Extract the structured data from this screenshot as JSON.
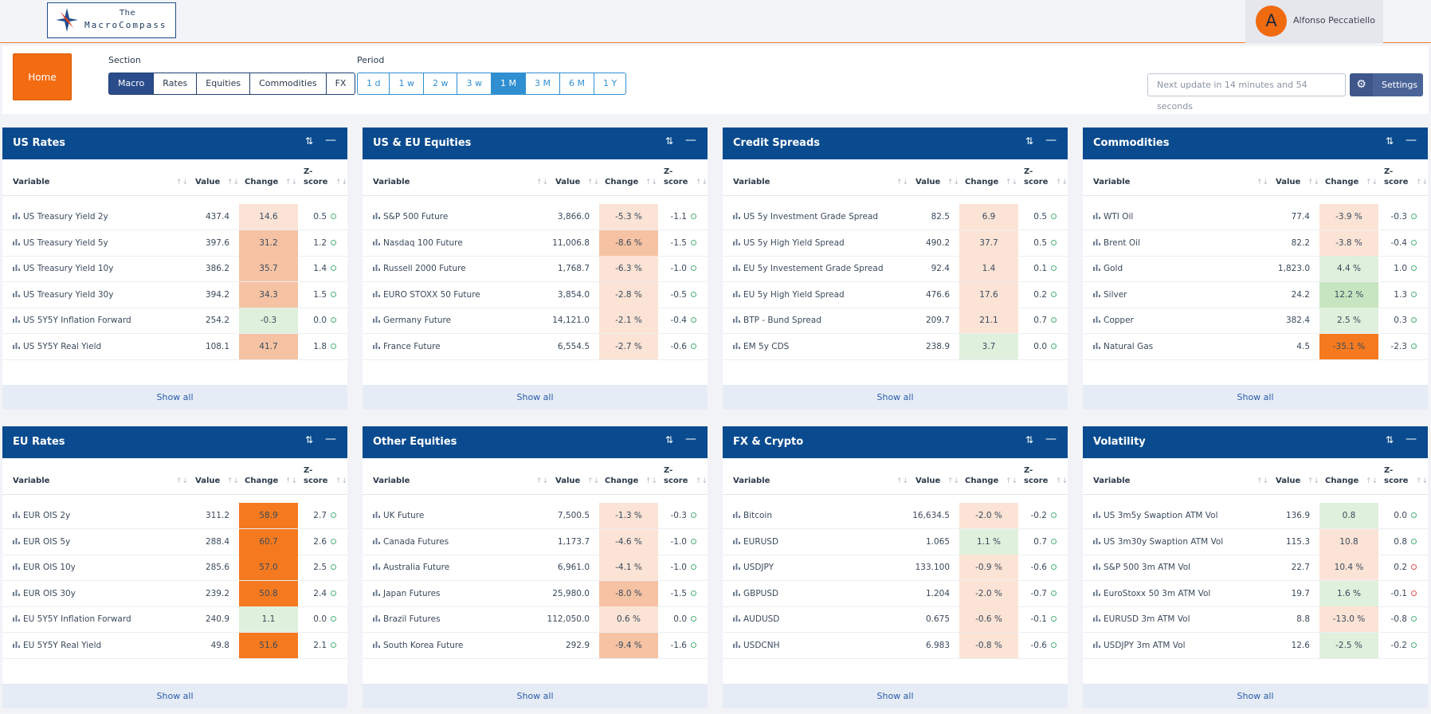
{
  "header": {
    "logo_line1": "The",
    "logo_line2": "MacroCompass",
    "user_initial": "A",
    "user_name": "Alfonso Peccatiello"
  },
  "controls": {
    "home_label": "Home",
    "section_label": "Section",
    "sections": [
      {
        "label": "Macro",
        "active": true
      },
      {
        "label": "Rates",
        "active": false
      },
      {
        "label": "Equities",
        "active": false
      },
      {
        "label": "Commodities",
        "active": false
      },
      {
        "label": "FX",
        "active": false
      }
    ],
    "period_label": "Period",
    "periods": [
      {
        "label": "1 d",
        "active": false
      },
      {
        "label": "1 w",
        "active": false
      },
      {
        "label": "2 w",
        "active": false
      },
      {
        "label": "3 w",
        "active": false
      },
      {
        "label": "1 M",
        "active": true
      },
      {
        "label": "3 M",
        "active": false
      },
      {
        "label": "6 M",
        "active": false
      },
      {
        "label": "1 Y",
        "active": false
      }
    ],
    "next_update": "Next update in 14 minutes and 54 seconds",
    "settings_label": "Settings"
  },
  "table_headers": {
    "variable": "Variable",
    "value": "Value",
    "change": "Change",
    "zscore_line1": "Z-",
    "zscore_line2": "score",
    "show_all": "Show all"
  },
  "colors": {
    "header_blue": "#0a4b8f",
    "accent_orange": "#f36c12",
    "strong_up": "#f57a1f",
    "up": "#f5c3a3",
    "light_up": "#fbe3d5",
    "down": "#dff0dc",
    "strong_down": "#c6e5c0"
  },
  "panels": [
    {
      "title": "US Rates",
      "rows": [
        {
          "name": "US Treasury Yield 2y",
          "value": "437.4",
          "change": "14.6",
          "z": "0.5",
          "level": "light_up",
          "zdir": "green"
        },
        {
          "name": "US Treasury Yield 5y",
          "value": "397.6",
          "change": "31.2",
          "z": "1.2",
          "level": "up",
          "zdir": "green"
        },
        {
          "name": "US Treasury Yield 10y",
          "value": "386.2",
          "change": "35.7",
          "z": "1.4",
          "level": "up",
          "zdir": "green"
        },
        {
          "name": "US Treasury Yield 30y",
          "value": "394.2",
          "change": "34.3",
          "z": "1.5",
          "level": "up",
          "zdir": "green"
        },
        {
          "name": "US 5Y5Y Inflation Forward",
          "value": "254.2",
          "change": "-0.3",
          "z": "0.0",
          "level": "down",
          "zdir": "green"
        },
        {
          "name": "US 5Y5Y Real Yield",
          "value": "108.1",
          "change": "41.7",
          "z": "1.8",
          "level": "up",
          "zdir": "green"
        }
      ]
    },
    {
      "title": "US & EU Equities",
      "rows": [
        {
          "name": "S&P 500 Future",
          "value": "3,866.0",
          "change": "-5.3 %",
          "z": "-1.1",
          "level": "light_up",
          "zdir": "green"
        },
        {
          "name": "Nasdaq 100 Future",
          "value": "11,006.8",
          "change": "-8.6 %",
          "z": "-1.5",
          "level": "up",
          "zdir": "green"
        },
        {
          "name": "Russell 2000 Future",
          "value": "1,768.7",
          "change": "-6.3 %",
          "z": "-1.0",
          "level": "light_up",
          "zdir": "green"
        },
        {
          "name": "EURO STOXX 50 Future",
          "value": "3,854.0",
          "change": "-2.8 %",
          "z": "-0.5",
          "level": "light_up",
          "zdir": "green"
        },
        {
          "name": "Germany Future",
          "value": "14,121.0",
          "change": "-2.1 %",
          "z": "-0.4",
          "level": "light_up",
          "zdir": "green"
        },
        {
          "name": "France Future",
          "value": "6,554.5",
          "change": "-2.7 %",
          "z": "-0.6",
          "level": "light_up",
          "zdir": "green"
        }
      ]
    },
    {
      "title": "Credit Spreads",
      "rows": [
        {
          "name": "US 5y Investment Grade Spread",
          "value": "82.5",
          "change": "6.9",
          "z": "0.5",
          "level": "light_up",
          "zdir": "green"
        },
        {
          "name": "US 5y High Yield Spread",
          "value": "490.2",
          "change": "37.7",
          "z": "0.5",
          "level": "light_up",
          "zdir": "green"
        },
        {
          "name": "EU 5y Investement Grade Spread",
          "value": "92.4",
          "change": "1.4",
          "z": "0.1",
          "level": "light_up",
          "zdir": "green"
        },
        {
          "name": "EU 5y High Yield Spread",
          "value": "476.6",
          "change": "17.6",
          "z": "0.2",
          "level": "light_up",
          "zdir": "green"
        },
        {
          "name": "BTP - Bund Spread",
          "value": "209.7",
          "change": "21.1",
          "z": "0.7",
          "level": "light_up",
          "zdir": "green"
        },
        {
          "name": "EM 5y CDS",
          "value": "238.9",
          "change": "3.7",
          "z": "0.0",
          "level": "down",
          "zdir": "green"
        }
      ]
    },
    {
      "title": "Commodities",
      "rows": [
        {
          "name": "WTI Oil",
          "value": "77.4",
          "change": "-3.9 %",
          "z": "-0.3",
          "level": "light_up",
          "zdir": "green"
        },
        {
          "name": "Brent Oil",
          "value": "82.2",
          "change": "-3.8 %",
          "z": "-0.4",
          "level": "light_up",
          "zdir": "green"
        },
        {
          "name": "Gold",
          "value": "1,823.0",
          "change": "4.4 %",
          "z": "1.0",
          "level": "down",
          "zdir": "green"
        },
        {
          "name": "Silver",
          "value": "24.2",
          "change": "12.2 %",
          "z": "1.3",
          "level": "strong_down",
          "zdir": "green"
        },
        {
          "name": "Copper",
          "value": "382.4",
          "change": "2.5 %",
          "z": "0.3",
          "level": "down",
          "zdir": "green"
        },
        {
          "name": "Natural Gas",
          "value": "4.5",
          "change": "-35.1 %",
          "z": "-2.3",
          "level": "strong_up",
          "zdir": "green"
        }
      ]
    },
    {
      "title": "EU Rates",
      "rows": [
        {
          "name": "EUR OIS 2y",
          "value": "311.2",
          "change": "58.9",
          "z": "2.7",
          "level": "strong_up",
          "zdir": "green"
        },
        {
          "name": "EUR OIS 5y",
          "value": "288.4",
          "change": "60.7",
          "z": "2.6",
          "level": "strong_up",
          "zdir": "green"
        },
        {
          "name": "EUR OIS 10y",
          "value": "285.6",
          "change": "57.0",
          "z": "2.5",
          "level": "strong_up",
          "zdir": "green"
        },
        {
          "name": "EUR OIS 30y",
          "value": "239.2",
          "change": "50.8",
          "z": "2.4",
          "level": "strong_up",
          "zdir": "green"
        },
        {
          "name": "EU 5Y5Y Inflation Forward",
          "value": "240.9",
          "change": "1.1",
          "z": "0.0",
          "level": "down",
          "zdir": "green"
        },
        {
          "name": "EU 5Y5Y Real Yield",
          "value": "49.8",
          "change": "51.6",
          "z": "2.1",
          "level": "strong_up",
          "zdir": "green"
        }
      ]
    },
    {
      "title": "Other Equities",
      "rows": [
        {
          "name": "UK Future",
          "value": "7,500.5",
          "change": "-1.3 %",
          "z": "-0.3",
          "level": "light_up",
          "zdir": "green"
        },
        {
          "name": "Canada Futures",
          "value": "1,173.7",
          "change": "-4.6 %",
          "z": "-1.0",
          "level": "light_up",
          "zdir": "green"
        },
        {
          "name": "Australia Future",
          "value": "6,961.0",
          "change": "-4.1 %",
          "z": "-1.0",
          "level": "light_up",
          "zdir": "green"
        },
        {
          "name": "Japan Futures",
          "value": "25,980.0",
          "change": "-8.0 %",
          "z": "-1.5",
          "level": "up",
          "zdir": "green"
        },
        {
          "name": "Brazil Futures",
          "value": "112,050.0",
          "change": "0.6 %",
          "z": "0.0",
          "level": "light_up",
          "zdir": "green"
        },
        {
          "name": "South Korea Future",
          "value": "292.9",
          "change": "-9.4 %",
          "z": "-1.6",
          "level": "up",
          "zdir": "green"
        }
      ]
    },
    {
      "title": "FX & Crypto",
      "rows": [
        {
          "name": "Bitcoin",
          "value": "16,634.5",
          "change": "-2.0 %",
          "z": "-0.2",
          "level": "light_up",
          "zdir": "green"
        },
        {
          "name": "EURUSD",
          "value": "1.065",
          "change": "1.1 %",
          "z": "0.7",
          "level": "down",
          "zdir": "green"
        },
        {
          "name": "USDJPY",
          "value": "133.100",
          "change": "-0.9 %",
          "z": "-0.6",
          "level": "light_up",
          "zdir": "green"
        },
        {
          "name": "GBPUSD",
          "value": "1.204",
          "change": "-2.0 %",
          "z": "-0.7",
          "level": "light_up",
          "zdir": "green"
        },
        {
          "name": "AUDUSD",
          "value": "0.675",
          "change": "-0.6 %",
          "z": "-0.1",
          "level": "light_up",
          "zdir": "green"
        },
        {
          "name": "USDCNH",
          "value": "6.983",
          "change": "-0.8 %",
          "z": "-0.6",
          "level": "light_up",
          "zdir": "green"
        }
      ]
    },
    {
      "title": "Volatility",
      "rows": [
        {
          "name": "US 3m5y Swaption ATM Vol",
          "value": "136.9",
          "change": "0.8",
          "z": "0.0",
          "level": "down",
          "zdir": "green"
        },
        {
          "name": "US 3m30y Swaption ATM Vol",
          "value": "115.3",
          "change": "10.8",
          "z": "0.8",
          "level": "light_up",
          "zdir": "green"
        },
        {
          "name": "S&P 500 3m ATM Vol",
          "value": "22.7",
          "change": "10.4 %",
          "z": "0.2",
          "level": "light_up",
          "zdir": "red"
        },
        {
          "name": "EuroStoxx 50 3m ATM Vol",
          "value": "19.7",
          "change": "1.6 %",
          "z": "-0.1",
          "level": "down",
          "zdir": "red"
        },
        {
          "name": "EURUSD 3m ATM Vol",
          "value": "8.8",
          "change": "-13.0 %",
          "z": "-0.8",
          "level": "light_up",
          "zdir": "green"
        },
        {
          "name": "USDJPY 3m ATM Vol",
          "value": "12.6",
          "change": "-2.5 %",
          "z": "-0.2",
          "level": "down",
          "zdir": "green"
        }
      ]
    }
  ]
}
